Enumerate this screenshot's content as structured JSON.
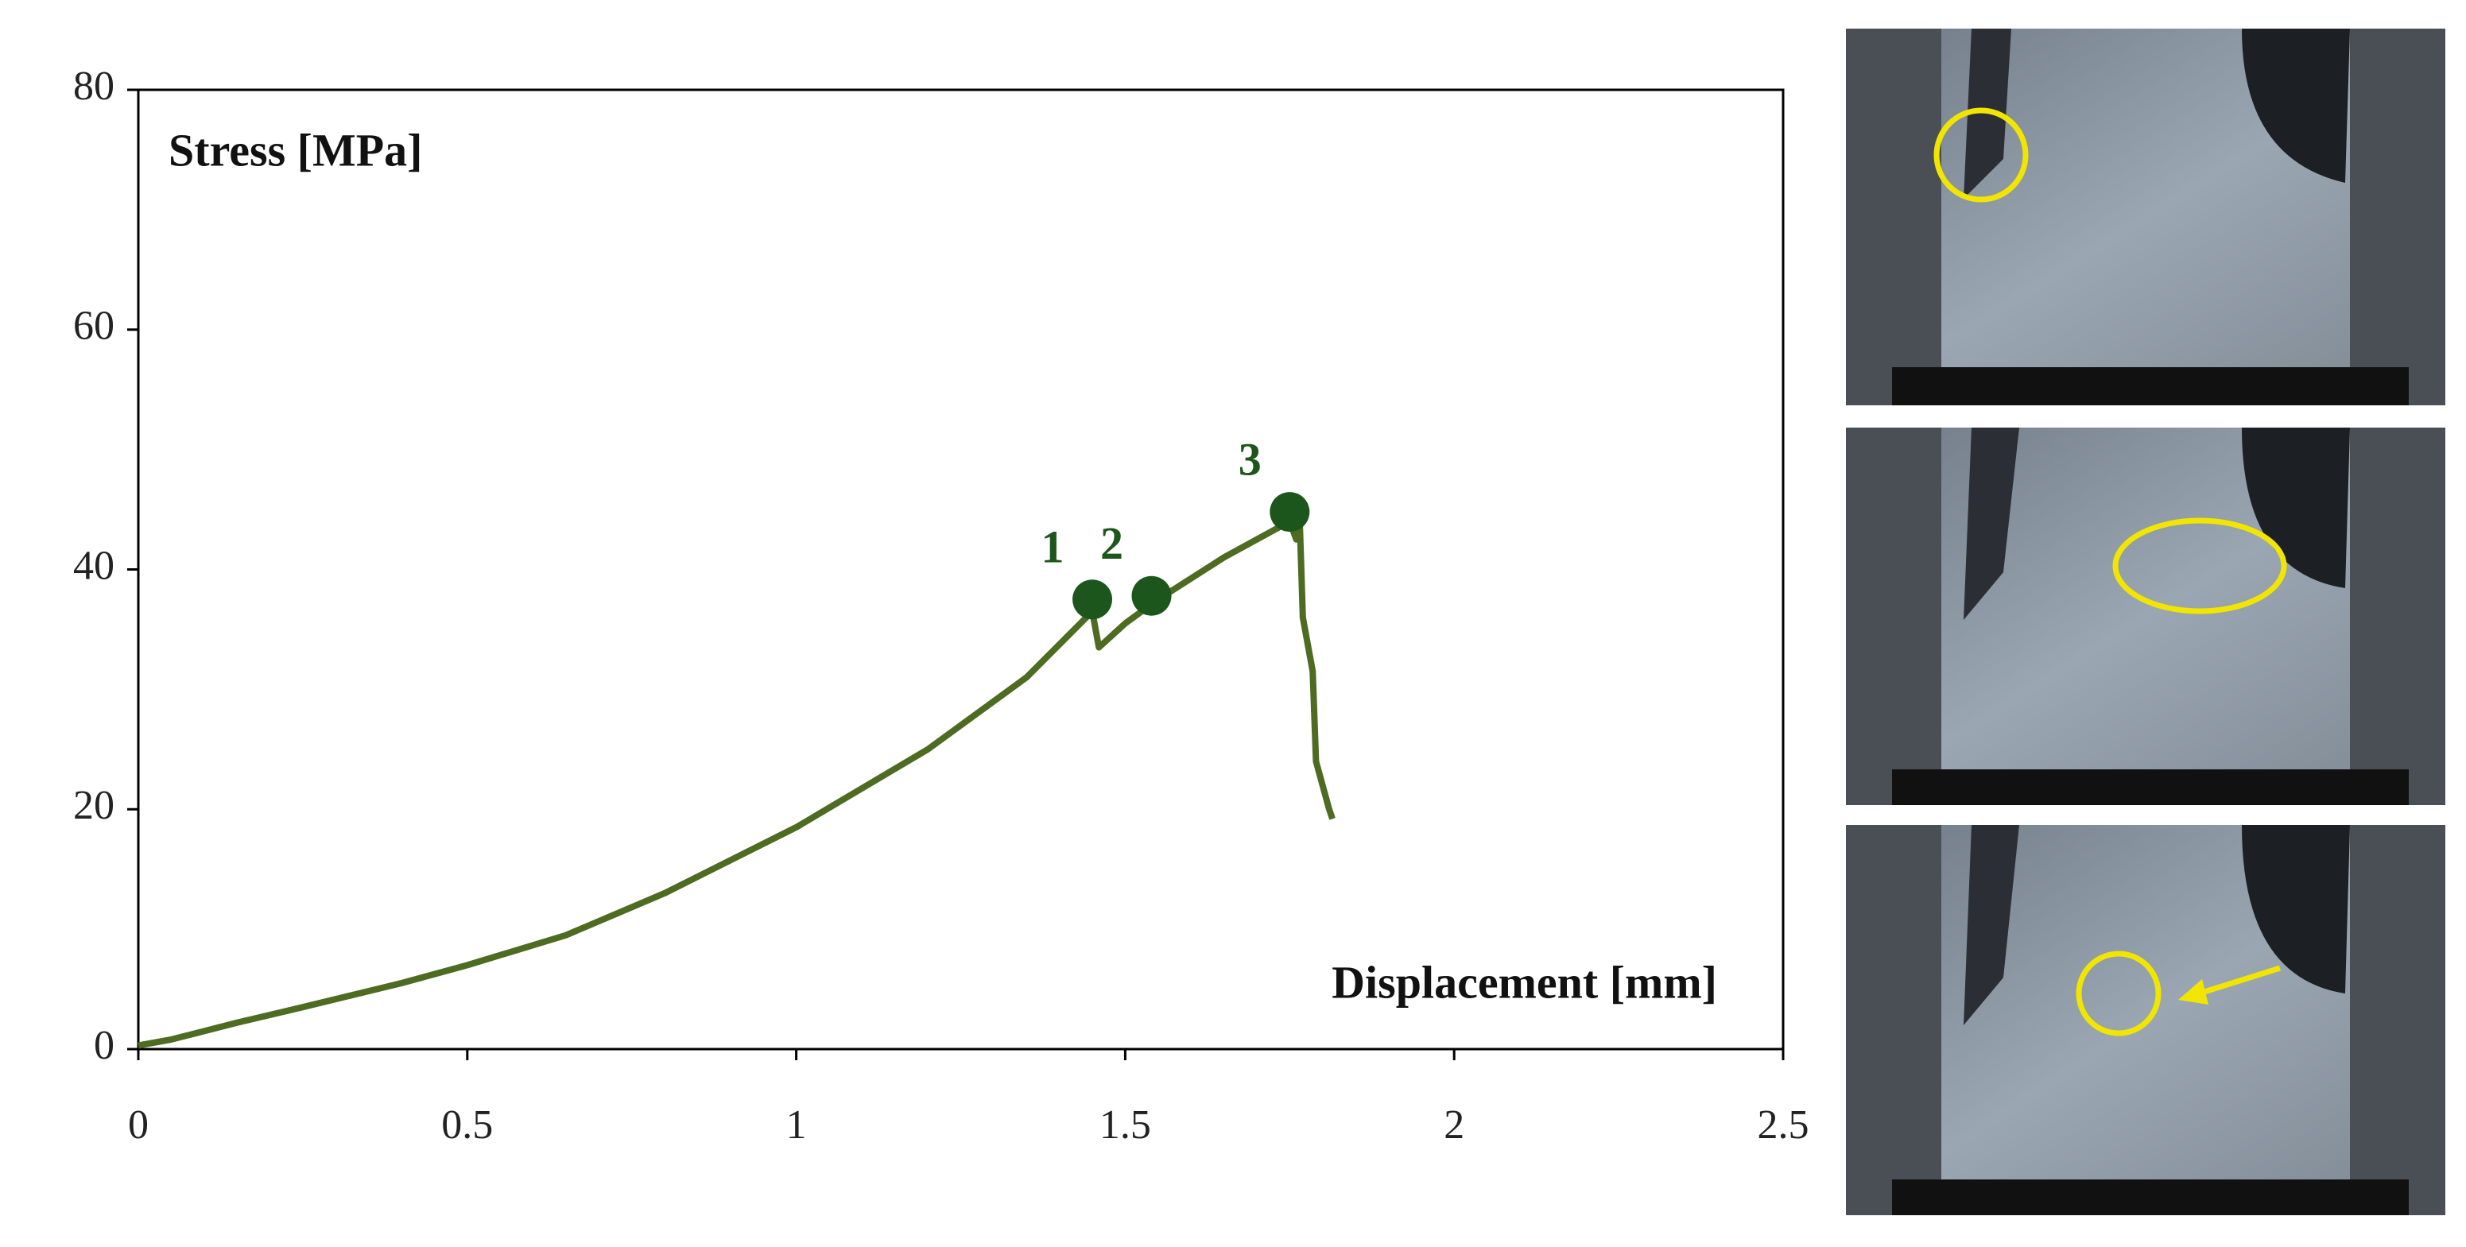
{
  "chart_data": {
    "type": "line",
    "x_label": "Displacement [mm]",
    "y_label": "Stress [MPa]",
    "x": [
      0,
      0.05,
      0.1,
      0.15,
      0.25,
      0.4,
      0.5,
      0.65,
      0.8,
      1.0,
      1.2,
      1.35,
      1.45,
      1.46,
      1.5,
      1.55,
      1.65,
      1.75,
      1.76,
      1.765,
      1.77,
      1.785,
      1.79,
      1.81,
      1.815
    ],
    "series": [
      {
        "color": "#4e6b22",
        "values": [
          0.3,
          0.8,
          1.5,
          2.2,
          3.5,
          5.5,
          7,
          9.5,
          13,
          18.5,
          25,
          31,
          36.5,
          33.5,
          35.5,
          37.5,
          41,
          44,
          42.5,
          44.5,
          36,
          31.5,
          24,
          20,
          19.2
        ]
      }
    ],
    "markers": {
      "color": "#1d561d",
      "labels": [
        "1",
        "2",
        "3"
      ],
      "x": [
        1.45,
        1.54,
        1.75
      ],
      "values": [
        37.5,
        37.8,
        44.8
      ]
    },
    "xlim": [
      0,
      2.5
    ],
    "xticks": [
      0,
      0.5,
      1,
      1.5,
      2,
      2.5
    ],
    "ylim": [
      0,
      80
    ],
    "yticks": [
      0,
      20,
      40,
      60,
      80
    ],
    "grid": false
  }
}
